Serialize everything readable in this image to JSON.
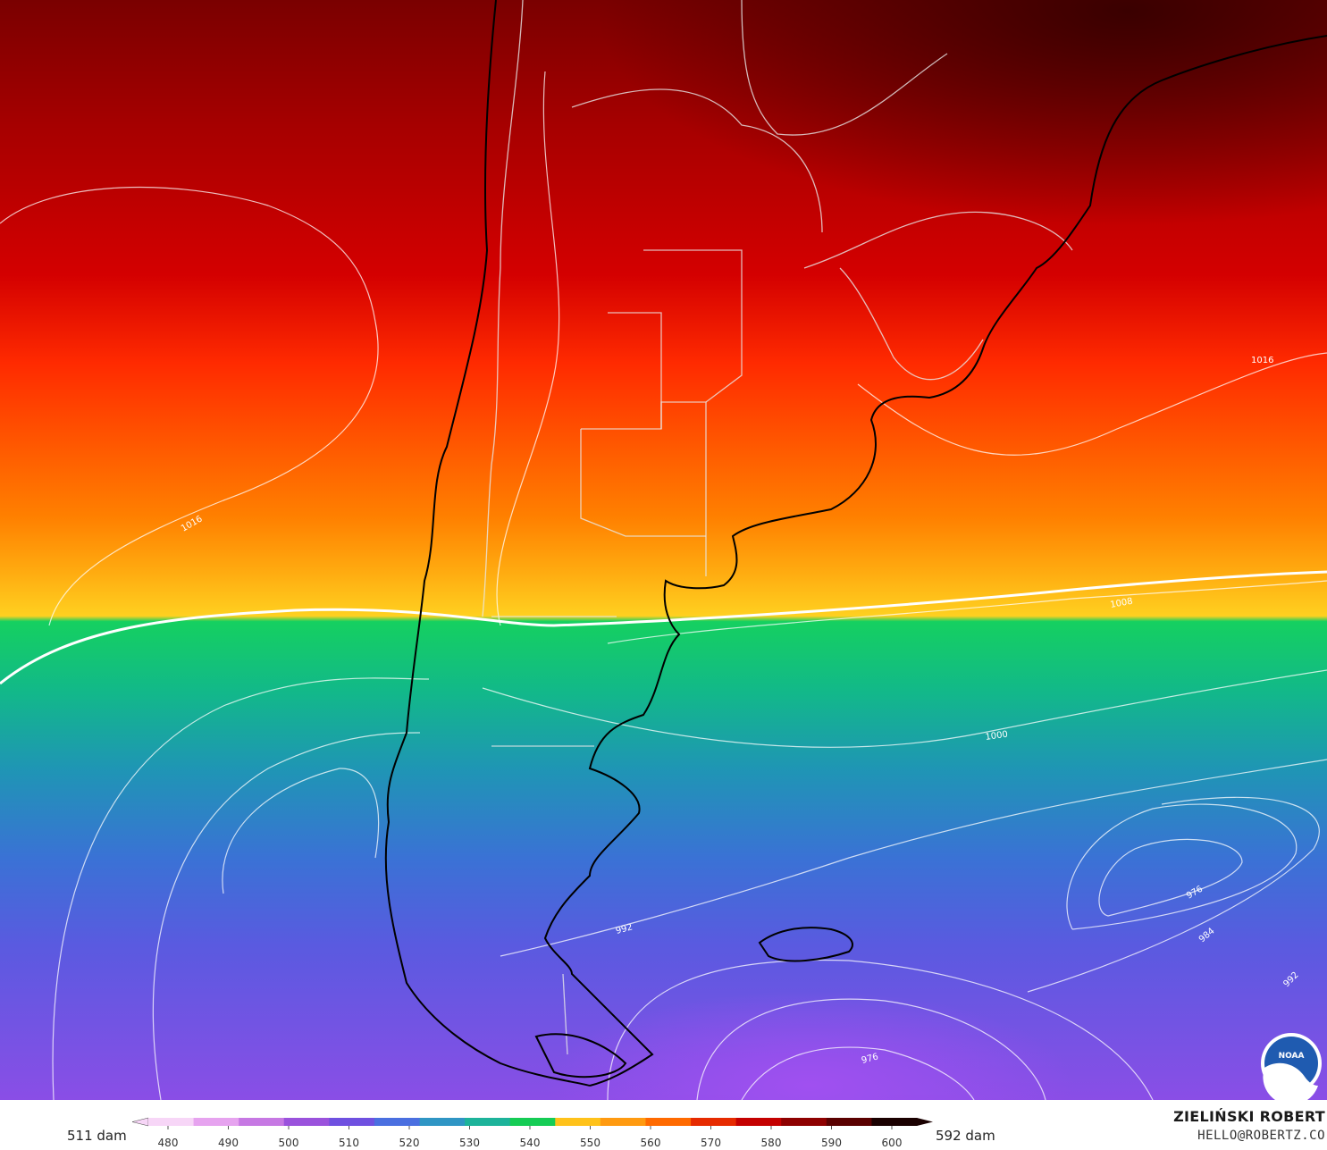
{
  "footer": {
    "min_label": "511 dam",
    "max_label": "592 dam",
    "author_name": "ZIELIŃSKI ROBERT",
    "author_contact": "HELLO@ROBERTZ.CO"
  },
  "colorbar": {
    "ticks": [
      "480",
      "490",
      "500",
      "510",
      "520",
      "530",
      "540",
      "550",
      "560",
      "570",
      "580",
      "590",
      "600"
    ],
    "colors": [
      "#f7d6f7",
      "#e6a3ef",
      "#c678e3",
      "#9a52dc",
      "#6f50e0",
      "#4a6fe0",
      "#2f95c4",
      "#1db39a",
      "#15cc55",
      "#ffc21a",
      "#ff9a10",
      "#ff6a00",
      "#e62a00",
      "#c40000",
      "#8e0000",
      "#5a0000",
      "#1a0000"
    ]
  },
  "map": {
    "isobar_labels": [
      "1016",
      "1016",
      "1008",
      "1000",
      "992",
      "984",
      "976",
      "976",
      "992"
    ],
    "logo_text": "NOAA"
  }
}
